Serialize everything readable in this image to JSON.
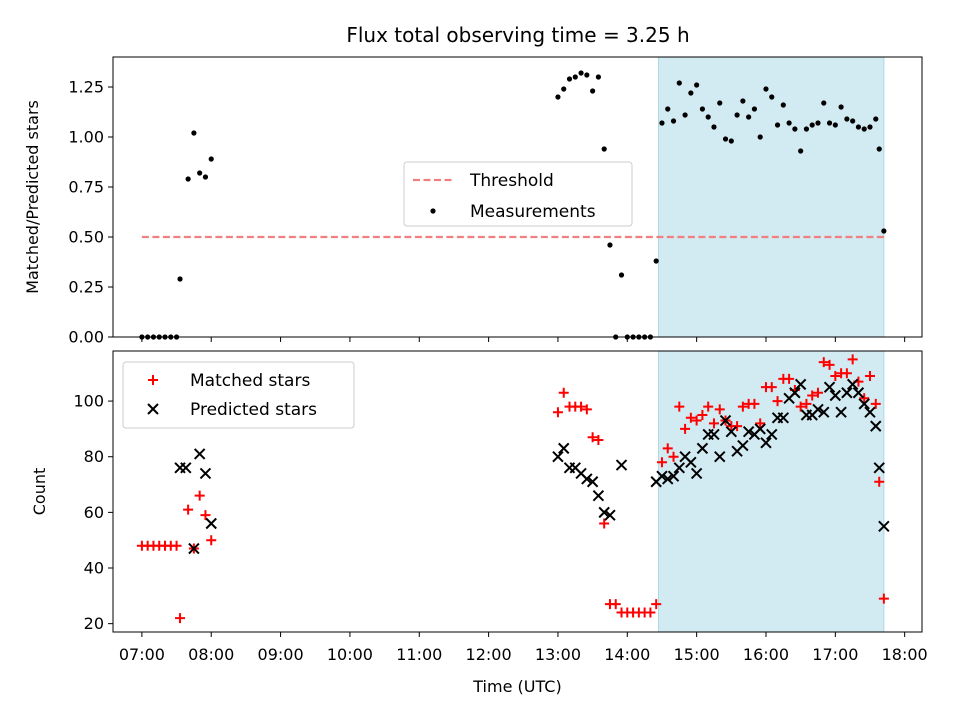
{
  "chart_data": [
    {
      "type": "scatter",
      "title": "Flux total observing time = 3.25 h",
      "ylabel": "Matched/Predicted stars",
      "xlabel": "",
      "xlim": [
        "06:35",
        "18:15"
      ],
      "ylim": [
        0,
        1.4
      ],
      "yticks": [
        "0.00",
        "0.25",
        "0.50",
        "0.75",
        "1.00",
        "1.25"
      ],
      "ytick_values": [
        0,
        0.25,
        0.5,
        0.75,
        1.0,
        1.25
      ],
      "shaded_span": [
        "14:27",
        "17:42"
      ],
      "shaded_color": "#add8e6",
      "legend_position": "center",
      "legend": [
        "Threshold",
        "Measurements"
      ],
      "threshold": {
        "name": "Threshold",
        "y": 0.5,
        "x_range": [
          "07:00",
          "17:42"
        ],
        "color": "#f08080",
        "style": "dashed"
      },
      "series": [
        {
          "name": "Measurements",
          "color": "#000000",
          "marker": "dot",
          "points": [
            [
              "07:00",
              0
            ],
            [
              "07:05",
              0
            ],
            [
              "07:10",
              0
            ],
            [
              "07:15",
              0
            ],
            [
              "07:20",
              0
            ],
            [
              "07:25",
              0
            ],
            [
              "07:30",
              0
            ],
            [
              "07:33",
              0.29
            ],
            [
              "07:40",
              0.79
            ],
            [
              "07:45",
              1.02
            ],
            [
              "07:50",
              0.82
            ],
            [
              "07:55",
              0.8
            ],
            [
              "08:00",
              0.89
            ],
            [
              "13:00",
              1.2
            ],
            [
              "13:05",
              1.24
            ],
            [
              "13:10",
              1.29
            ],
            [
              "13:15",
              1.3
            ],
            [
              "13:20",
              1.32
            ],
            [
              "13:25",
              1.31
            ],
            [
              "13:30",
              1.23
            ],
            [
              "13:35",
              1.3
            ],
            [
              "13:40",
              0.94
            ],
            [
              "13:45",
              0.46
            ],
            [
              "13:50",
              0
            ],
            [
              "13:55",
              0.31
            ],
            [
              "14:00",
              0
            ],
            [
              "14:05",
              0
            ],
            [
              "14:10",
              0
            ],
            [
              "14:15",
              0
            ],
            [
              "14:20",
              0
            ],
            [
              "14:25",
              0.38
            ],
            [
              "14:30",
              1.07
            ],
            [
              "14:35",
              1.14
            ],
            [
              "14:40",
              1.08
            ],
            [
              "14:45",
              1.27
            ],
            [
              "14:50",
              1.11
            ],
            [
              "14:55",
              1.22
            ],
            [
              "15:00",
              1.26
            ],
            [
              "15:05",
              1.14
            ],
            [
              "15:10",
              1.1
            ],
            [
              "15:15",
              1.05
            ],
            [
              "15:20",
              1.17
            ],
            [
              "15:25",
              0.99
            ],
            [
              "15:30",
              0.98
            ],
            [
              "15:35",
              1.11
            ],
            [
              "15:40",
              1.18
            ],
            [
              "15:45",
              1.1
            ],
            [
              "15:50",
              1.14
            ],
            [
              "15:55",
              1.0
            ],
            [
              "16:00",
              1.24
            ],
            [
              "16:05",
              1.2
            ],
            [
              "16:10",
              1.06
            ],
            [
              "16:15",
              1.16
            ],
            [
              "16:20",
              1.07
            ],
            [
              "16:25",
              1.04
            ],
            [
              "16:30",
              0.93
            ],
            [
              "16:35",
              1.04
            ],
            [
              "16:40",
              1.06
            ],
            [
              "16:45",
              1.07
            ],
            [
              "16:50",
              1.17
            ],
            [
              "16:55",
              1.07
            ],
            [
              "17:00",
              1.06
            ],
            [
              "17:05",
              1.15
            ],
            [
              "17:10",
              1.09
            ],
            [
              "17:15",
              1.08
            ],
            [
              "17:20",
              1.05
            ],
            [
              "17:25",
              1.04
            ],
            [
              "17:30",
              1.05
            ],
            [
              "17:35",
              1.09
            ],
            [
              "17:38",
              0.94
            ],
            [
              "17:42",
              0.53
            ]
          ]
        }
      ]
    },
    {
      "type": "scatter",
      "title": "",
      "xlabel": "Time (UTC)",
      "ylabel": "Count",
      "xlim": [
        "06:35",
        "18:15"
      ],
      "ylim": [
        17,
        118
      ],
      "xticks": [
        "07:00",
        "08:00",
        "09:00",
        "10:00",
        "11:00",
        "12:00",
        "13:00",
        "14:00",
        "15:00",
        "16:00",
        "17:00",
        "18:00"
      ],
      "yticks": [
        "20",
        "40",
        "60",
        "80",
        "100"
      ],
      "ytick_values": [
        20,
        40,
        60,
        80,
        100
      ],
      "shaded_span": [
        "14:27",
        "17:42"
      ],
      "shaded_color": "#add8e6",
      "legend_position": "top-left",
      "legend": [
        "Matched stars",
        "Predicted stars"
      ],
      "series": [
        {
          "name": "Matched stars",
          "color": "#ff0000",
          "marker": "plus",
          "points": [
            [
              "07:00",
              48
            ],
            [
              "07:05",
              48
            ],
            [
              "07:10",
              48
            ],
            [
              "07:15",
              48
            ],
            [
              "07:20",
              48
            ],
            [
              "07:25",
              48
            ],
            [
              "07:30",
              48
            ],
            [
              "07:33",
              22
            ],
            [
              "07:40",
              61
            ],
            [
              "07:45",
              47
            ],
            [
              "07:50",
              66
            ],
            [
              "07:55",
              59
            ],
            [
              "08:00",
              50
            ],
            [
              "13:00",
              96
            ],
            [
              "13:05",
              103
            ],
            [
              "13:10",
              98
            ],
            [
              "13:15",
              98
            ],
            [
              "13:20",
              98
            ],
            [
              "13:25",
              97
            ],
            [
              "13:30",
              87
            ],
            [
              "13:35",
              86
            ],
            [
              "13:40",
              56
            ],
            [
              "13:45",
              27
            ],
            [
              "13:50",
              27
            ],
            [
              "13:55",
              24
            ],
            [
              "14:00",
              24
            ],
            [
              "14:05",
              24
            ],
            [
              "14:10",
              24
            ],
            [
              "14:15",
              24
            ],
            [
              "14:20",
              24
            ],
            [
              "14:25",
              27
            ],
            [
              "14:30",
              78
            ],
            [
              "14:35",
              83
            ],
            [
              "14:40",
              80
            ],
            [
              "14:45",
              98
            ],
            [
              "14:50",
              90
            ],
            [
              "14:55",
              94
            ],
            [
              "15:00",
              93
            ],
            [
              "15:05",
              95
            ],
            [
              "15:10",
              98
            ],
            [
              "15:15",
              92
            ],
            [
              "15:20",
              97
            ],
            [
              "15:25",
              93
            ],
            [
              "15:30",
              91
            ],
            [
              "15:35",
              91
            ],
            [
              "15:40",
              98
            ],
            [
              "15:45",
              99
            ],
            [
              "15:50",
              99
            ],
            [
              "15:55",
              92
            ],
            [
              "16:00",
              105
            ],
            [
              "16:05",
              105
            ],
            [
              "16:10",
              100
            ],
            [
              "16:15",
              108
            ],
            [
              "16:20",
              108
            ],
            [
              "16:25",
              104
            ],
            [
              "16:30",
              98
            ],
            [
              "16:35",
              99
            ],
            [
              "16:40",
              102
            ],
            [
              "16:45",
              103
            ],
            [
              "16:50",
              114
            ],
            [
              "16:55",
              113
            ],
            [
              "17:00",
              109
            ],
            [
              "17:05",
              110
            ],
            [
              "17:10",
              110
            ],
            [
              "17:15",
              115
            ],
            [
              "17:20",
              107
            ],
            [
              "17:25",
              101
            ],
            [
              "17:30",
              109
            ],
            [
              "17:35",
              99
            ],
            [
              "17:38",
              71
            ],
            [
              "17:42",
              29
            ]
          ]
        },
        {
          "name": "Predicted stars",
          "color": "#000000",
          "marker": "x",
          "points": [
            [
              "07:33",
              76
            ],
            [
              "07:38",
              76
            ],
            [
              "07:45",
              47
            ],
            [
              "07:50",
              81
            ],
            [
              "07:55",
              74
            ],
            [
              "08:00",
              56
            ],
            [
              "13:00",
              80
            ],
            [
              "13:05",
              83
            ],
            [
              "13:10",
              76
            ],
            [
              "13:15",
              76
            ],
            [
              "13:20",
              74
            ],
            [
              "13:25",
              72
            ],
            [
              "13:30",
              71
            ],
            [
              "13:35",
              66
            ],
            [
              "13:40",
              60
            ],
            [
              "13:45",
              59
            ],
            [
              "13:55",
              77
            ],
            [
              "14:25",
              71
            ],
            [
              "14:30",
              73
            ],
            [
              "14:35",
              72
            ],
            [
              "14:40",
              73
            ],
            [
              "14:45",
              76
            ],
            [
              "14:50",
              80
            ],
            [
              "14:55",
              78
            ],
            [
              "15:00",
              74
            ],
            [
              "15:05",
              83
            ],
            [
              "15:10",
              88
            ],
            [
              "15:15",
              88
            ],
            [
              "15:20",
              80
            ],
            [
              "15:25",
              93
            ],
            [
              "15:30",
              89
            ],
            [
              "15:35",
              82
            ],
            [
              "15:40",
              84
            ],
            [
              "15:45",
              89
            ],
            [
              "15:50",
              88
            ],
            [
              "15:55",
              90
            ],
            [
              "16:00",
              85
            ],
            [
              "16:05",
              88
            ],
            [
              "16:10",
              94
            ],
            [
              "16:15",
              94
            ],
            [
              "16:20",
              101
            ],
            [
              "16:25",
              103
            ],
            [
              "16:30",
              106
            ],
            [
              "16:35",
              95
            ],
            [
              "16:40",
              95
            ],
            [
              "16:45",
              97
            ],
            [
              "16:50",
              96
            ],
            [
              "16:55",
              105
            ],
            [
              "17:00",
              102
            ],
            [
              "17:05",
              96
            ],
            [
              "17:10",
              103
            ],
            [
              "17:15",
              106
            ],
            [
              "17:20",
              103
            ],
            [
              "17:25",
              99
            ],
            [
              "17:30",
              96
            ],
            [
              "17:35",
              91
            ],
            [
              "17:38",
              76
            ],
            [
              "17:42",
              55
            ]
          ]
        }
      ]
    }
  ]
}
